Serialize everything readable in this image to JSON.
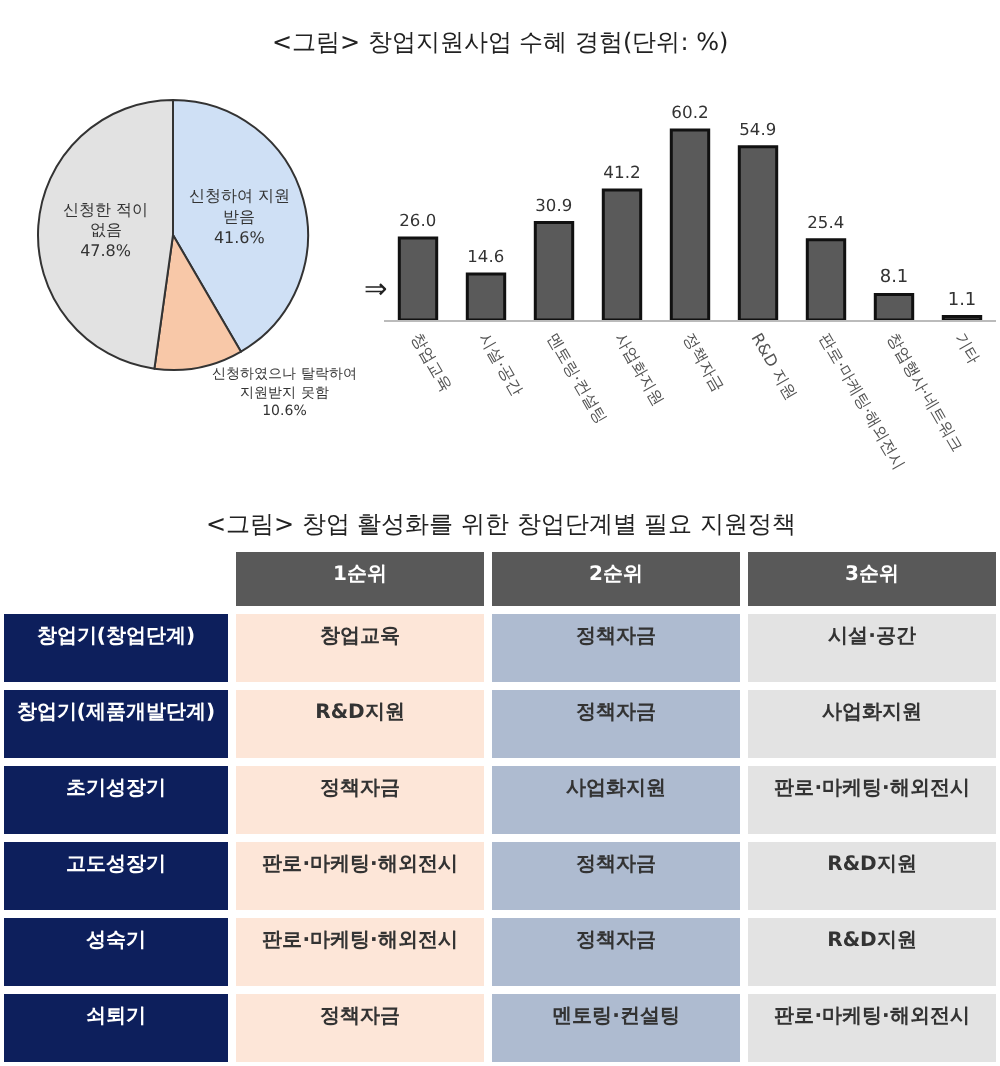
{
  "chart_data": [
    {
      "type": "pie",
      "annotations": [
        "⇒"
      ],
      "categories": [
        "신청하여 지원 받음",
        "신청하였으나 탈락하여 지원받지 못함",
        "신청한 적이 없음"
      ],
      "values": [
        41.6,
        10.6,
        47.8
      ],
      "colors": [
        "#cfe0f5",
        "#f8c8a8",
        "#e2e2e2"
      ],
      "value_labels": [
        "41.6%",
        "10.6%",
        "47.8%"
      ]
    },
    {
      "type": "bar",
      "title": "<그림> 창업지원사업 수혜 경험(단위: %)",
      "categories": [
        "창업교육",
        "시설·공간",
        "멘토링·컨설팅",
        "사업화지원",
        "정책자금",
        "R&D 지원",
        "판로·마케팅·해외전시",
        "창업행사·네트워크",
        "기타"
      ],
      "values": [
        26.0,
        14.6,
        30.9,
        41.2,
        60.2,
        54.9,
        25.4,
        8.1,
        1.1
      ],
      "color": "#5a5a5a",
      "value_labels": [
        "26.0",
        "14.6",
        "30.9",
        "41.2",
        "60.2",
        "54.9",
        "25.4",
        "8.1",
        "1.1"
      ]
    },
    {
      "type": "other",
      "title": "<그림> 창업 활성화를 위한 창업단계별 필요 지원정책",
      "categories": [
        "1순위",
        "2순위",
        "3순위"
      ],
      "y_categories": [
        "창업기(창업단계)",
        "창업기(제품개발단계)",
        "초기성장기",
        "고도성장기",
        "성숙기",
        "쇠퇴기"
      ],
      "cell_labels": [
        [
          "창업교육",
          "정책자금",
          "시설·공간"
        ],
        [
          "R&D지원",
          "정책자금",
          "사업화지원"
        ],
        [
          "정책자금",
          "사업화지원",
          "판로·마케팅·해외전시"
        ],
        [
          "판로·마케팅·해외전시",
          "정책자금",
          "R&D지원"
        ],
        [
          "판로·마케팅·해외전시",
          "정책자금",
          "R&D지원"
        ],
        [
          "정책자금",
          "멘토링·컨설팅",
          "판로·마케팅·해외전시"
        ]
      ]
    }
  ]
}
